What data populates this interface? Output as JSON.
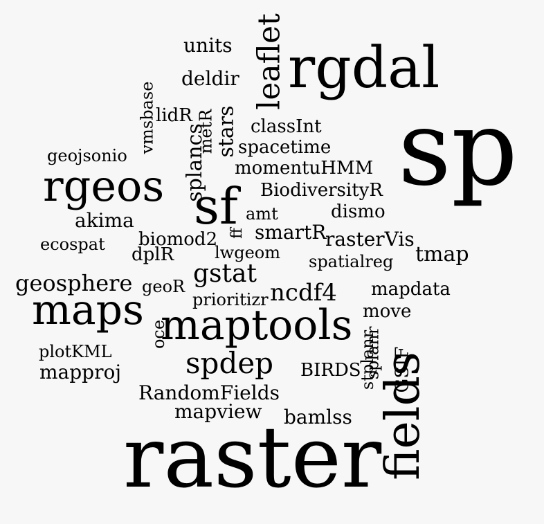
{
  "background": "#f7f7f7",
  "text_color": "#000000",
  "words": {
    "sp": "sp",
    "raster": "raster",
    "rgdal": "rgdal",
    "fields": "fields",
    "rgeos": "rgeos",
    "sf": "sf",
    "maps": "maps",
    "maptools": "maptools",
    "leaflet": "leaflet",
    "spdep": "spdep",
    "gstat": "gstat",
    "ncdf4": "ncdf4",
    "geosphere": "geosphere",
    "splancs": "splancs",
    "stars": "stars",
    "units": "units",
    "deldir": "deldir",
    "vmsbase": "vmsbase",
    "lidR": "lidR",
    "metR": "metR",
    "classInt": "classInt",
    "geojsonio": "geojsonio",
    "spacetime": "spacetime",
    "momentuHMM": "momentuHMM",
    "BiodiversityR": "BiodiversityR",
    "amt": "amt",
    "dismo": "dismo",
    "akima": "akima",
    "ff": "ff",
    "smartR": "smartR",
    "biomod2": "biomod2",
    "ecospat": "ecospat",
    "rasterVis": "rasterVis",
    "dplR": "dplR",
    "lwgeom": "lwgeom",
    "spatialreg": "spatialreg",
    "tmap": "tmap",
    "geoR": "geoR",
    "mapdata": "mapdata",
    "prioritizr": "prioritizr",
    "move": "move",
    "oce": "oce",
    "splanr": "splanr",
    "plotKML": "plotKML",
    "GSIF": "GSIF",
    "stplanr": "stplanr",
    "BIRDS": "BIRDS",
    "mapproj": "mapproj",
    "RandomFields": "RandomFields",
    "mapview": "mapview",
    "bamlss": "bamlss"
  }
}
